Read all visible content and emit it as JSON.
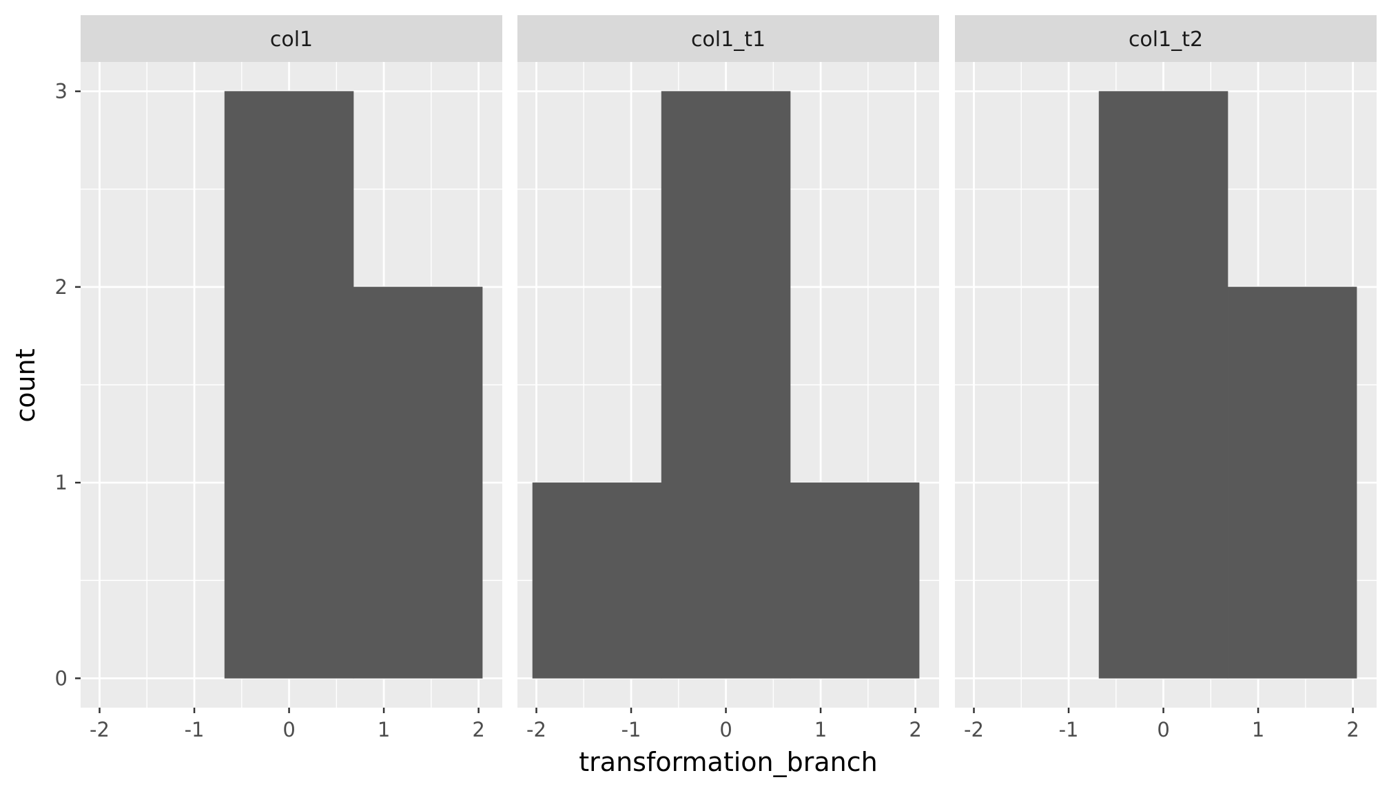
{
  "chart_data": {
    "type": "bar",
    "subtype": "faceted-histogram",
    "xlabel": "transformation_branch",
    "ylabel": "count",
    "xlim": [
      -2.2,
      2.25
    ],
    "ylim": [
      -0.15,
      3.15
    ],
    "x_ticks": [
      -2,
      -1,
      0,
      1,
      2
    ],
    "y_ticks": [
      0,
      1,
      2,
      3
    ],
    "grid": true,
    "colors": {
      "panel_bg": "#ebebeb",
      "strip_bg": "#d9d9d9",
      "bar_fill": "#595959",
      "grid": "#ffffff"
    },
    "facets": [
      {
        "label": "col1",
        "bins": [
          {
            "x_start": -0.68,
            "x_end": 0.68,
            "count": 3
          },
          {
            "x_start": 0.68,
            "x_end": 2.04,
            "count": 2
          }
        ]
      },
      {
        "label": "col1_t1",
        "bins": [
          {
            "x_start": -2.04,
            "x_end": -0.68,
            "count": 1
          },
          {
            "x_start": -0.68,
            "x_end": 0.68,
            "count": 3
          },
          {
            "x_start": 0.68,
            "x_end": 2.04,
            "count": 1
          }
        ]
      },
      {
        "label": "col1_t2",
        "bins": [
          {
            "x_start": -0.68,
            "x_end": 0.68,
            "count": 3
          },
          {
            "x_start": 0.68,
            "x_end": 2.04,
            "count": 2
          }
        ]
      }
    ]
  }
}
